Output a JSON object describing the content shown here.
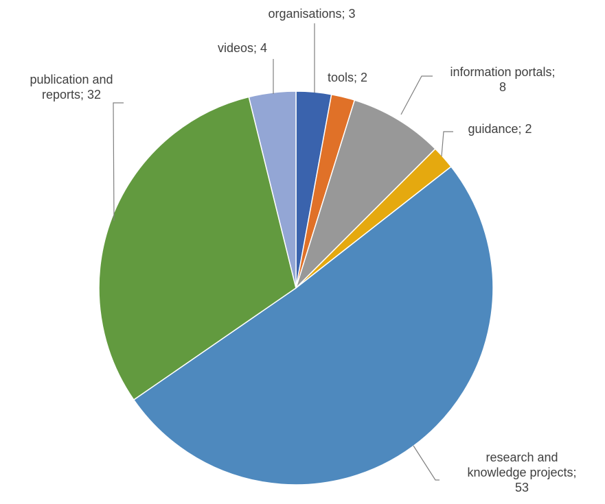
{
  "chart_data": {
    "type": "pie",
    "title": "",
    "slices": [
      {
        "label": "organisations",
        "value": 3,
        "color": "#3A63AD",
        "label_lines": [
          "organisations; 3"
        ]
      },
      {
        "label": "tools",
        "value": 2,
        "color": "#E07128",
        "label_lines": [
          "tools; 2"
        ]
      },
      {
        "label": "information portals",
        "value": 8,
        "color": "#989898",
        "label_lines": [
          "information portals;",
          "8"
        ]
      },
      {
        "label": "guidance",
        "value": 2,
        "color": "#E5A90F",
        "label_lines": [
          "guidance; 2"
        ]
      },
      {
        "label": "research and knowledge projects",
        "value": 53,
        "color": "#4E89BE",
        "label_lines": [
          "research and",
          "knowledge projects;",
          "53"
        ]
      },
      {
        "label": "publication and reports",
        "value": 32,
        "color": "#629A3F",
        "label_lines": [
          "publication and",
          "reports; 32"
        ]
      },
      {
        "label": "videos",
        "value": 4,
        "color": "#93A6D5",
        "label_lines": [
          "videos; 4"
        ]
      }
    ],
    "legend": "none",
    "data_labels": "category; value"
  }
}
